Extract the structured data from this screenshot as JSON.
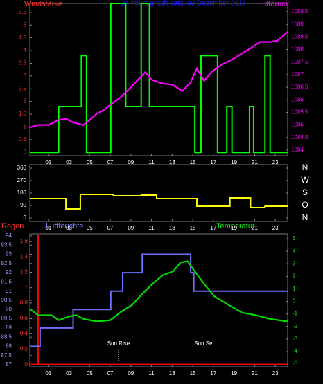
{
  "chart_data": [
    {
      "type": "line",
      "title": "24 hours graph data: 03 Dezember 2016",
      "ylabel": "Windstärke",
      "y2label": "Luftdruck",
      "xlim": [
        -0.8,
        24.2
      ],
      "xticks": [
        {
          "value": 1,
          "label": "01"
        },
        {
          "value": 3,
          "label": "03"
        },
        {
          "value": 5,
          "label": "05"
        },
        {
          "value": 7,
          "label": "07"
        },
        {
          "value": 9,
          "label": "09"
        },
        {
          "value": 11,
          "label": "11"
        },
        {
          "value": 13,
          "label": "13"
        },
        {
          "value": 15,
          "label": "15"
        },
        {
          "value": 17,
          "label": "17"
        },
        {
          "value": 19,
          "label": "19"
        },
        {
          "value": 21,
          "label": "21"
        },
        {
          "value": 23,
          "label": "23"
        }
      ],
      "ylim": [
        -0.13,
        5.85
      ],
      "yticks": [
        0,
        0.5,
        1,
        1.5,
        2,
        2.5,
        3,
        3.5,
        4,
        4.5,
        5,
        5.5
      ],
      "ytick_color": "#ff3030",
      "y2lim": [
        1083.78,
        1089.83
      ],
      "y2ticks": [
        1084,
        1084.5,
        1085,
        1085.5,
        1086,
        1086.5,
        1087,
        1087.5,
        1088,
        1088.5,
        1089,
        1089.5
      ],
      "y2tick_color": "#ff00ff",
      "series": [
        {
          "color": "#00ff00",
          "step": true,
          "x": [
            -0.8,
            2.0,
            4.2,
            4.7,
            7.05,
            8.5,
            10.0,
            10.8,
            15.2,
            15.8,
            17.4,
            18.3,
            18.8,
            20.5,
            20.9,
            22.0,
            22.5
          ],
          "values": [
            0,
            1.8,
            3.8,
            0,
            5.85,
            1.8,
            5.85,
            1.8,
            0,
            3.8,
            0,
            1.8,
            0,
            1.8,
            0,
            3.8,
            0
          ]
        },
        {
          "color": "#ff00ff",
          "axis": "y2",
          "x": [
            -0.8,
            0,
            1,
            2,
            2.7,
            3.4,
            4.4,
            5,
            5.7,
            6.4,
            7,
            8,
            9,
            9.7,
            10.4,
            11,
            12,
            13,
            14,
            14.8,
            15.4,
            16.1,
            16.8,
            17.8,
            18.8,
            19.8,
            20.8,
            21.5,
            22.5,
            23.2,
            24.2
          ],
          "values": [
            1084.9,
            1085.0,
            1085.0,
            1085.2,
            1085.25,
            1085.1,
            1085.0,
            1085.2,
            1085.45,
            1085.6,
            1085.8,
            1086.1,
            1086.5,
            1086.8,
            1087.1,
            1086.8,
            1086.65,
            1086.6,
            1086.35,
            1086.7,
            1087.25,
            1086.75,
            1087.1,
            1087.4,
            1087.6,
            1087.85,
            1088.1,
            1088.3,
            1088.3,
            1088.35,
            1088.7
          ]
        }
      ]
    },
    {
      "type": "line",
      "xlim": [
        -0.8,
        24.2
      ],
      "xticks": [
        {
          "value": 1,
          "label": "01"
        },
        {
          "value": 3,
          "label": "03"
        },
        {
          "value": 5,
          "label": "05"
        },
        {
          "value": 7,
          "label": "07"
        },
        {
          "value": 9,
          "label": "09"
        },
        {
          "value": 11,
          "label": "11"
        },
        {
          "value": 13,
          "label": "13"
        },
        {
          "value": 15,
          "label": "15"
        },
        {
          "value": 17,
          "label": "17"
        },
        {
          "value": 19,
          "label": "19"
        },
        {
          "value": 21,
          "label": "21"
        },
        {
          "value": 23,
          "label": "23"
        }
      ],
      "ylim": [
        -25,
        385
      ],
      "yticks": [
        0,
        90,
        180,
        270,
        360
      ],
      "ytick_color": "#ffffff",
      "y2lim": [
        -25,
        385
      ],
      "y2ticks": [
        {
          "value": 0,
          "label": "N"
        },
        {
          "value": 90,
          "label": "O"
        },
        {
          "value": 180,
          "label": "S"
        },
        {
          "value": 270,
          "label": "W"
        },
        {
          "value": 360,
          "label": "N"
        }
      ],
      "y2tick_color": "#ffffff",
      "series": [
        {
          "color": "#ffff00",
          "step": true,
          "x": [
            -0.8,
            2.7,
            4.1,
            7.3,
            10.0,
            11.5,
            15.4,
            18.6,
            20.6,
            22.0
          ],
          "values": [
            140,
            65,
            170,
            160,
            165,
            140,
            85,
            145,
            75,
            85
          ]
        }
      ]
    },
    {
      "type": "line",
      "ylabel": "Luftfeuchte",
      "y2label": "Temperatur",
      "y3label": "Regen",
      "xlim": [
        -0.8,
        24.2
      ],
      "xticks": [
        {
          "value": 1,
          "label": "01"
        },
        {
          "value": 3,
          "label": "03"
        },
        {
          "value": 5,
          "label": "05"
        },
        {
          "value": 7,
          "label": "07"
        },
        {
          "value": 9,
          "label": "09"
        },
        {
          "value": 11,
          "label": "11"
        },
        {
          "value": 13,
          "label": "13"
        },
        {
          "value": 15,
          "label": "15"
        },
        {
          "value": 17,
          "label": "17"
        },
        {
          "value": 19,
          "label": "19"
        },
        {
          "value": 21,
          "label": "21"
        },
        {
          "value": 23,
          "label": "23"
        }
      ],
      "ylim": [
        86.89,
        94.11
      ],
      "yticks": [
        87,
        87.5,
        88,
        88.5,
        89,
        89.5,
        90,
        90.5,
        91,
        91.5,
        92,
        92.5,
        93,
        93.5,
        94
      ],
      "ytick_color": "#9999ff",
      "y2lim": [
        -5.22,
        5.39
      ],
      "y2ticks": [
        -5,
        -4,
        -3,
        -2,
        -1,
        0,
        1,
        2,
        3,
        4,
        5
      ],
      "y2tick_color": "#00ff00",
      "y3lim": [
        -0.03,
        1.7
      ],
      "y3ticks": [
        0,
        0.2,
        0.4,
        0.6,
        0.8,
        1,
        1.2,
        1.4,
        1.6
      ],
      "y3tick_color": "#ff3030",
      "annotations": [
        {
          "text": "Sun Rise",
          "x": 7.8
        },
        {
          "text": "Sun Set",
          "x": 16.1
        }
      ],
      "series": [
        {
          "color": "#ff0000",
          "axis": "y3",
          "step": true,
          "x": [
            -0.8,
            0
          ],
          "values": [
            0,
            0
          ]
        },
        {
          "color": "#7070ff",
          "step": true,
          "x": [
            -0.8,
            0.2,
            3.4,
            7.05,
            8.2,
            10.1,
            14.8,
            15.1
          ],
          "values": [
            88,
            89,
            90,
            91,
            92,
            93,
            92,
            91
          ]
        },
        {
          "color": "#00dd00",
          "axis": "y2",
          "x": [
            -0.8,
            0,
            1.3,
            2.0,
            3.0,
            3.7,
            4.4,
            5.7,
            7.0,
            8.1,
            9.1,
            10.1,
            11.1,
            12.1,
            13.1,
            13.8,
            14.5,
            15.1,
            16.1,
            17.1,
            18.5,
            19.8,
            21.1,
            22.5,
            24.2
          ],
          "values": [
            -0.6,
            -1.1,
            -1.1,
            -1.5,
            -1.2,
            -1.1,
            -1.4,
            -1.6,
            -1.5,
            -0.8,
            -0.3,
            0.6,
            1.4,
            2.1,
            2.4,
            3.1,
            3.2,
            2.5,
            1.4,
            0.4,
            -0.3,
            -0.9,
            -1.1,
            -1.4,
            -1.6
          ]
        }
      ]
    }
  ]
}
